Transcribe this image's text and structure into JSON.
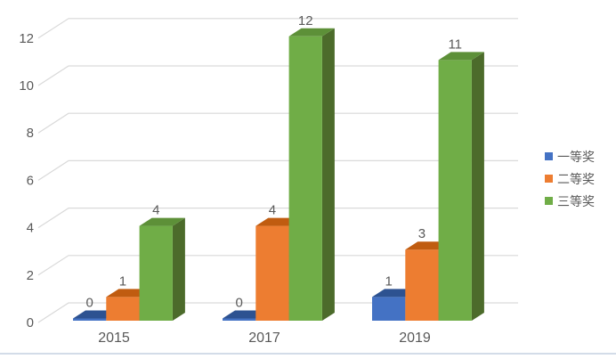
{
  "chart_data": {
    "type": "bar",
    "subtype": "3d-clustered-column",
    "title": "",
    "xlabel": "",
    "ylabel": "",
    "categories": [
      "2015",
      "2017",
      "2019"
    ],
    "series": [
      {
        "name": "一等奖",
        "color": "#4472c4",
        "color_top": "#2d5291",
        "color_side": "#27497f",
        "values": [
          0,
          0,
          1
        ]
      },
      {
        "name": "二等奖",
        "color": "#ed7d31",
        "color_top": "#c05c10",
        "color_side": "#a8510f",
        "values": [
          1,
          4,
          3
        ]
      },
      {
        "name": "三等奖",
        "color": "#70ad47",
        "color_top": "#5d9038",
        "color_side": "#4c6b2b",
        "values": [
          4,
          12,
          11
        ]
      }
    ],
    "yticks": [
      0,
      2,
      4,
      6,
      8,
      10,
      12
    ],
    "ylim": [
      0,
      12
    ],
    "grid": true,
    "data_labels": true,
    "legend_position": "right"
  },
  "style": {
    "text_color": "#595959",
    "grid_color": "#d9d9d9",
    "bottom_rule_color": "#d3dce8",
    "background": "#ffffff"
  }
}
